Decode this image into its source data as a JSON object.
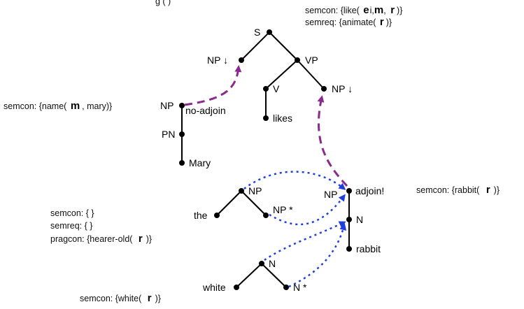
{
  "header_partial": "g          (  )",
  "colors": {
    "purple": "#8a2a8a",
    "blue": "#1e3ee0"
  },
  "trees": {
    "like": {
      "S": "S",
      "NP_subj": "NP ↓",
      "VP": "VP",
      "V": "V",
      "NP_obj": "NP ↓",
      "lex": "likes"
    },
    "mary": {
      "NP": "NP",
      "no_adjoin": "no-adjoin",
      "PN": "PN",
      "lex": "Mary"
    },
    "the": {
      "NP": "NP",
      "lex": "the",
      "NP_foot": "NP *"
    },
    "rabbit": {
      "NP": "NP",
      "adjoin": "adjoin!",
      "N": "N",
      "lex": "rabbit"
    },
    "white": {
      "N": "N",
      "lex": "white",
      "N_foot": "N *"
    }
  },
  "semantics": {
    "like_semcon_pre": "semcon: {like(",
    "like_semcon_post": ")}",
    "like_semreq_pre": "semreq: {animate(",
    "like_semreq_post": ")}",
    "mary_semcon_pre": "semcon: {name(",
    "mary_semcon_post": ", mary)}",
    "rabbit_semcon_pre": "semcon: {rabbit(",
    "rabbit_semcon_post": ")}",
    "the_semcon": "semcon: { }",
    "the_semreq": "semreq: { }",
    "the_pragcon_pre": "pragcon: {hearer-old(",
    "the_pragcon_post": ")}",
    "white_semcon_pre": "semcon: {white(",
    "white_semcon_post": ")}"
  },
  "vars": {
    "e": "e",
    "m": "m",
    "r": "r"
  }
}
